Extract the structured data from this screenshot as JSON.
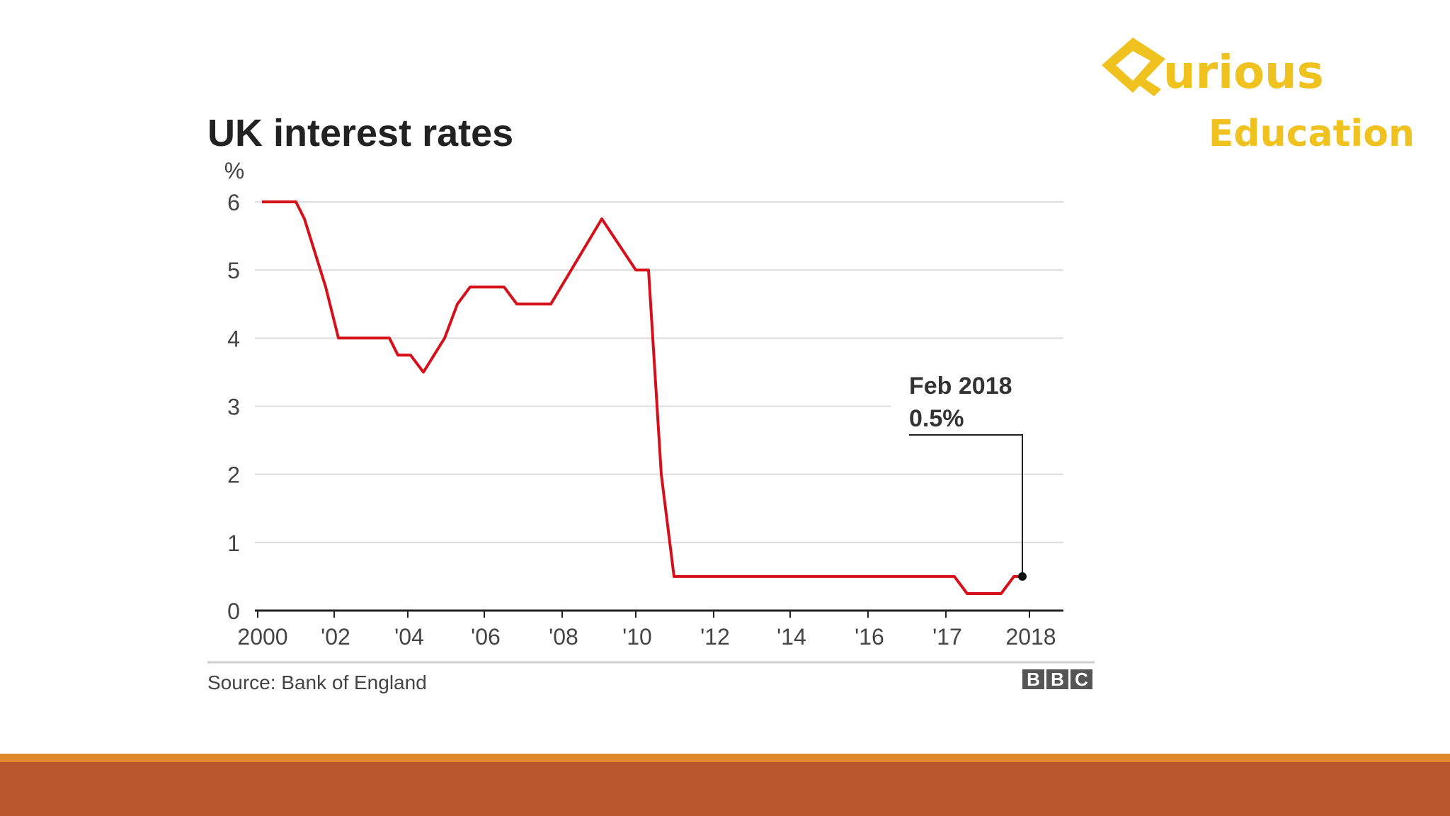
{
  "brand": {
    "name": "urious",
    "subtitle": "Education",
    "color": "#efc21f"
  },
  "footer": {
    "top_color": "#e0892a",
    "main_color": "#b9572c"
  },
  "chart_data": {
    "type": "line",
    "title": "UK interest rates",
    "ylabel": "%",
    "xlabel": "",
    "ylim": [
      0,
      6
    ],
    "yticks": [
      0,
      1,
      2,
      3,
      4,
      5,
      6
    ],
    "xlim": [
      2000,
      2018
    ],
    "xticks": [
      {
        "value": 2000,
        "label": "2000"
      },
      {
        "value": 2002,
        "label": "'02"
      },
      {
        "value": 2004,
        "label": "'04"
      },
      {
        "value": 2006,
        "label": "'06"
      },
      {
        "value": 2008,
        "label": "'08"
      },
      {
        "value": 2010,
        "label": "'10"
      },
      {
        "value": 2012,
        "label": "'12"
      },
      {
        "value": 2014,
        "label": "'14"
      },
      {
        "value": 2016,
        "label": "'16"
      },
      {
        "value": 2017,
        "label": "'17"
      },
      {
        "value": 2018,
        "label": "2018"
      }
    ],
    "grid": true,
    "line_color": "#d5101b",
    "series": [
      {
        "x": [
          2000.1,
          2000.9,
          2001.1,
          2001.6,
          2001.9,
          2003.1,
          2003.3,
          2003.6,
          2003.9,
          2004.4,
          2004.7,
          2005.0,
          2005.8,
          2006.1,
          2006.9,
          2008.1,
          2008.9,
          2009.2,
          2009.5,
          2009.8,
          2016.4,
          2016.7,
          2017.3,
          2017.5,
          2017.8,
          2018.0
        ],
        "y": [
          6.0,
          6.0,
          5.75,
          4.75,
          4.0,
          4.0,
          3.75,
          3.75,
          3.5,
          4.0,
          4.5,
          4.75,
          4.75,
          4.5,
          4.5,
          5.75,
          5.0,
          5.0,
          2.0,
          0.5,
          0.5,
          0.25,
          0.25,
          0.25,
          0.5,
          0.5
        ]
      }
    ],
    "annotation": {
      "x": 2018.0,
      "y": 0.5,
      "line1": "Feb 2018",
      "line2": "0.5%"
    },
    "source": "Source: Bank of England",
    "publisher": [
      "B",
      "B",
      "C"
    ]
  }
}
